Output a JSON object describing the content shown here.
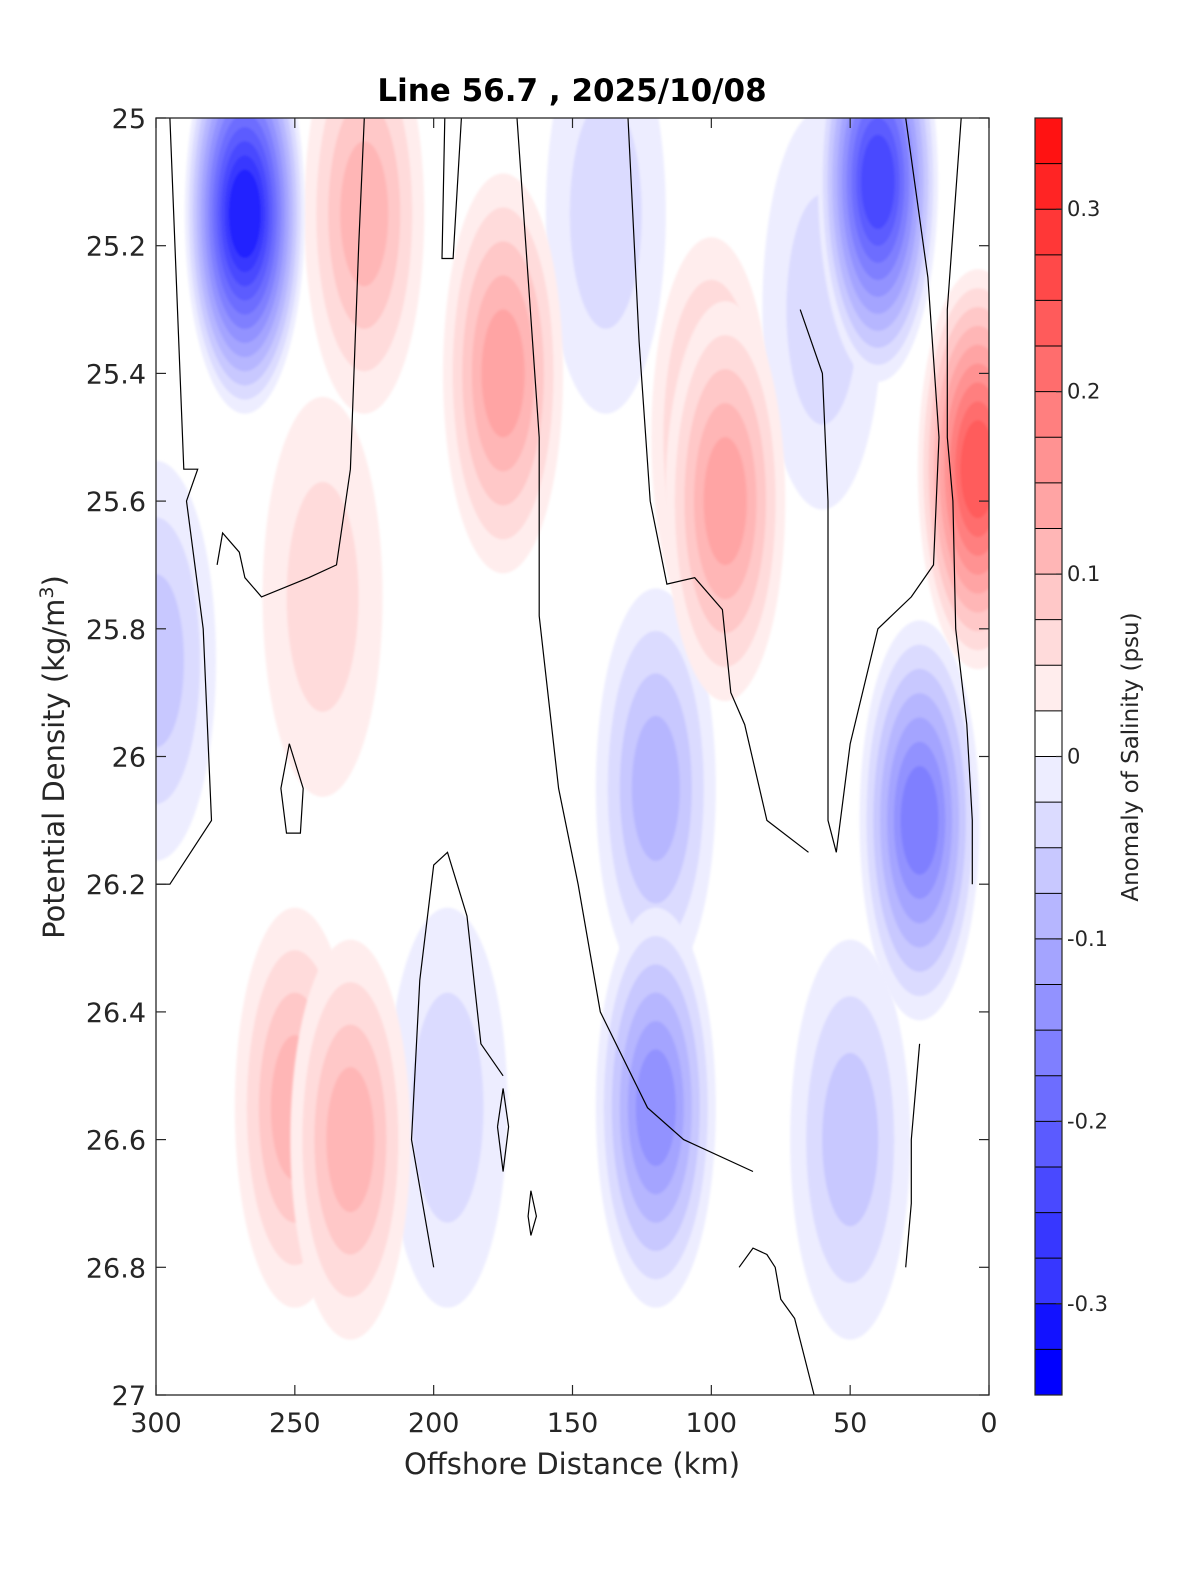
{
  "chart_data": {
    "type": "heatmap",
    "title": "Line 56.7 , 2025/10/08",
    "xlabel": "Offshore Distance (km)",
    "ylabel_main": "Potential Density (kg/m",
    "ylabel_sup": "3",
    "ylabel_close": ")",
    "xlim": [
      300,
      0
    ],
    "ylim": [
      25,
      27
    ],
    "x_ticks": [
      300,
      250,
      200,
      150,
      100,
      50,
      0
    ],
    "x_tick_labels": [
      "300",
      "250",
      "200",
      "150",
      "100",
      "50",
      "0"
    ],
    "y_ticks": [
      25,
      25.2,
      25.4,
      25.6,
      25.8,
      26,
      26.2,
      26.4,
      26.6,
      26.8,
      27
    ],
    "y_tick_labels": [
      "25",
      "25.2",
      "25.4",
      "25.6",
      "25.8",
      "26",
      "26.2",
      "26.4",
      "26.6",
      "26.8",
      "27"
    ],
    "colorbar": {
      "label": "Anomaly of Salinity (psu)",
      "range": [
        -0.35,
        0.35
      ],
      "step": 0.025,
      "ticks": [
        0.3,
        0.2,
        0.1,
        0,
        -0.1,
        -0.2,
        -0.3
      ],
      "tick_labels": [
        "0.3",
        "0.2",
        "0.1",
        "0",
        "-0.1",
        "-0.2",
        "-0.3"
      ]
    },
    "features": [
      {
        "name": "salty-core-225",
        "x": 225,
        "y": 25.15,
        "value": 0.09
      },
      {
        "name": "salty-core-175",
        "x": 175,
        "y": 25.4,
        "value": 0.13
      },
      {
        "name": "salty-lens-100",
        "x": 100,
        "y": 25.5,
        "value": 0.1
      },
      {
        "name": "salty-lens-95",
        "x": 95,
        "y": 25.6,
        "value": 0.13
      },
      {
        "name": "salty-deep-250",
        "x": 250,
        "y": 26.55,
        "value": 0.1
      },
      {
        "name": "salty-deep-230",
        "x": 230,
        "y": 26.6,
        "value": 0.11
      },
      {
        "name": "salty-mid-240",
        "x": 240,
        "y": 25.75,
        "value": 0.06
      },
      {
        "name": "salty-nearshore",
        "x": 4,
        "y": 25.55,
        "value": 0.22
      },
      {
        "name": "fresh-core-268",
        "x": 268,
        "y": 25.15,
        "value": -0.31
      },
      {
        "name": "fresh-core-40",
        "x": 40,
        "y": 25.1,
        "value": -0.25
      },
      {
        "name": "fresh-lens-25",
        "x": 25,
        "y": 26.1,
        "value": -0.17
      },
      {
        "name": "fresh-deep-120",
        "x": 120,
        "y": 26.55,
        "value": -0.15
      },
      {
        "name": "fresh-mid-120",
        "x": 120,
        "y": 26.05,
        "value": -0.1
      },
      {
        "name": "fresh-offshore-300",
        "x": 300,
        "y": 25.85,
        "value": -0.08
      },
      {
        "name": "fresh-deep-50",
        "x": 50,
        "y": 26.6,
        "value": -0.07
      },
      {
        "name": "fresh-shallow-138",
        "x": 138,
        "y": 25.15,
        "value": -0.05
      },
      {
        "name": "fresh-shallow-60",
        "x": 60,
        "y": 25.3,
        "value": -0.06
      },
      {
        "name": "fresh-band-195",
        "x": 195,
        "y": 26.55,
        "value": -0.04
      }
    ],
    "zero_contours": [
      [
        [
          295,
          25
        ],
        [
          290,
          25.55
        ],
        [
          285,
          25.55
        ],
        [
          289,
          25.6
        ],
        [
          283,
          25.8
        ],
        [
          280,
          26.1
        ],
        [
          295,
          26.2
        ],
        [
          300,
          26.2
        ]
      ],
      [
        [
          225,
          25
        ],
        [
          227,
          25.2
        ],
        [
          230,
          25.55
        ],
        [
          235,
          25.7
        ],
        [
          245,
          25.72
        ],
        [
          262,
          25.75
        ],
        [
          268,
          25.72
        ],
        [
          270,
          25.68
        ],
        [
          276,
          25.65
        ],
        [
          278,
          25.7
        ]
      ],
      [
        [
          252,
          25.98
        ],
        [
          247,
          26.05
        ],
        [
          248,
          26.12
        ],
        [
          253,
          26.12
        ],
        [
          255,
          26.05
        ],
        [
          252,
          25.98
        ]
      ],
      [
        [
          190,
          25
        ],
        [
          193,
          25.22
        ],
        [
          197,
          25.22
        ],
        [
          196,
          25
        ]
      ],
      [
        [
          170,
          25
        ],
        [
          162,
          25.5
        ],
        [
          162,
          25.78
        ],
        [
          155,
          26.05
        ],
        [
          148,
          26.2
        ],
        [
          140,
          26.4
        ],
        [
          123,
          26.55
        ],
        [
          110,
          26.6
        ],
        [
          85,
          26.65
        ]
      ],
      [
        [
          130,
          25
        ],
        [
          126,
          25.35
        ],
        [
          122,
          25.6
        ],
        [
          116,
          25.73
        ],
        [
          106,
          25.72
        ],
        [
          96,
          25.77
        ],
        [
          93,
          25.9
        ],
        [
          88,
          25.95
        ],
        [
          80,
          26.1
        ],
        [
          65,
          26.15
        ]
      ],
      [
        [
          200,
          26.8
        ],
        [
          208,
          26.6
        ],
        [
          205,
          26.35
        ],
        [
          200,
          26.17
        ],
        [
          195,
          26.15
        ],
        [
          188,
          26.25
        ],
        [
          183,
          26.45
        ],
        [
          175,
          26.5
        ]
      ],
      [
        [
          177,
          26.58
        ],
        [
          175,
          26.52
        ],
        [
          173,
          26.58
        ],
        [
          175,
          26.65
        ],
        [
          177,
          26.58
        ]
      ],
      [
        [
          165,
          26.68
        ],
        [
          163,
          26.72
        ],
        [
          165,
          26.75
        ],
        [
          166,
          26.72
        ],
        [
          165,
          26.68
        ]
      ],
      [
        [
          63,
          27
        ],
        [
          70,
          26.88
        ],
        [
          75,
          26.85
        ],
        [
          77,
          26.8
        ],
        [
          80,
          26.78
        ],
        [
          85,
          26.77
        ],
        [
          90,
          26.8
        ]
      ],
      [
        [
          30,
          25
        ],
        [
          22,
          25.25
        ],
        [
          18,
          25.5
        ],
        [
          20,
          25.7
        ],
        [
          28,
          25.75
        ],
        [
          40,
          25.8
        ],
        [
          50,
          25.98
        ],
        [
          55,
          26.15
        ],
        [
          58,
          26.1
        ],
        [
          58,
          25.6
        ],
        [
          60,
          25.4
        ],
        [
          68,
          25.3
        ]
      ],
      [
        [
          10,
          25
        ],
        [
          15,
          25.3
        ],
        [
          15,
          25.5
        ],
        [
          13,
          25.6
        ],
        [
          12,
          25.8
        ],
        [
          8,
          25.95
        ],
        [
          6,
          26.1
        ],
        [
          6,
          26.2
        ]
      ],
      [
        [
          25,
          26.45
        ],
        [
          28,
          26.6
        ],
        [
          28,
          26.7
        ],
        [
          30,
          26.8
        ]
      ]
    ]
  }
}
